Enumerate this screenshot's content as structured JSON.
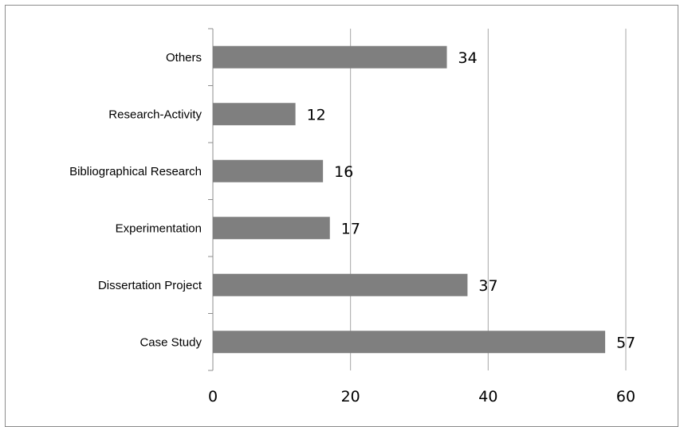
{
  "chart_data": {
    "type": "bar",
    "orientation": "horizontal",
    "categories": [
      "Case Study",
      "Dissertation Project",
      "Experimentation",
      "Bibliographical Research",
      "Research-Activity",
      "Others"
    ],
    "values": [
      57,
      37,
      17,
      16,
      12,
      34
    ],
    "xlim": [
      0,
      60
    ],
    "xticks": [
      0,
      20,
      40,
      60
    ],
    "grid": true,
    "data_labels": true,
    "legend": "none",
    "bar_color": "#7f7f7f",
    "title": "",
    "xlabel": "",
    "ylabel": ""
  }
}
